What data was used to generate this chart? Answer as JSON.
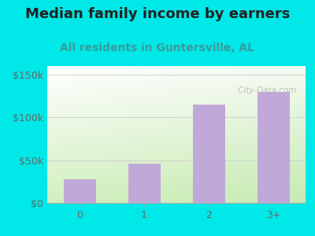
{
  "title": "Median family income by earners",
  "subtitle": "All residents in Guntersville, AL",
  "categories": [
    "0",
    "1",
    "2",
    "3+"
  ],
  "values": [
    28000,
    46000,
    115000,
    130000
  ],
  "bar_color": "#c0a8d8",
  "background_outer": "#00e8e8",
  "title_color": "#222222",
  "subtitle_color": "#3a9a9a",
  "axis_label_color": "#666666",
  "yticks": [
    0,
    50000,
    100000,
    150000
  ],
  "ytick_labels": [
    "$0",
    "$50k",
    "$100k",
    "$150k"
  ],
  "ylim": [
    0,
    160000
  ],
  "watermark": " City-Data.com",
  "title_fontsize": 13,
  "subtitle_fontsize": 10,
  "tick_fontsize": 9
}
